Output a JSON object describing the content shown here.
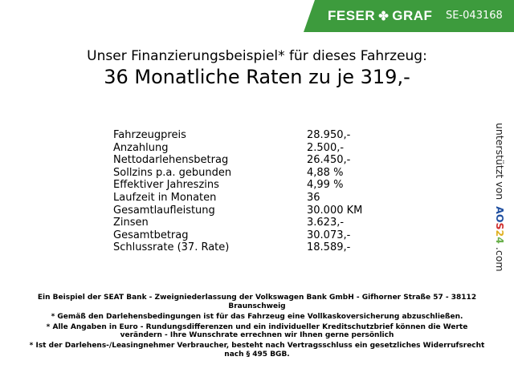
{
  "header": {
    "brand_left": "FESER",
    "brand_right": "GRAF",
    "dealer_code": "SE-043168",
    "brand_color": "#3d9b3d",
    "icon": "clover-icon"
  },
  "title": {
    "line1": "Unser Finanzierungsbeispiel* für dieses Fahrzeug:",
    "line2": "36 Monatliche Raten zu je 319,-"
  },
  "rows": [
    {
      "label": "Fahrzeugpreis",
      "value": "28.950,-"
    },
    {
      "label": "Anzahlung",
      "value": "2.500,-"
    },
    {
      "label": "Nettodarlehensbetrag",
      "value": "26.450,-"
    },
    {
      "label": "Sollzins p.a. gebunden",
      "value": "4,88 %"
    },
    {
      "label": "Effektiver Jahreszins",
      "value": "4,99 %"
    },
    {
      "label": "Laufzeit in Monaten",
      "value": "36"
    },
    {
      "label": "Gesamtlaufleistung",
      "value": "30.000 KM"
    },
    {
      "label": "Zinsen",
      "value": "3.623,-"
    },
    {
      "label": "Gesamtbetrag",
      "value": "30.073,-"
    },
    {
      "label": "Schlussrate (37. Rate)",
      "value": "18.589,-"
    }
  ],
  "side": {
    "text": "unterstützt von",
    "logo": "AOS24",
    "suffix": ".com"
  },
  "footer": [
    "Ein Beispiel der SEAT Bank - Zweigniederlassung der Volkswagen Bank GmbH - Gifhorner Straße 57 - 38112 Braunschweig",
    "* Gemäß den Darlehensbedingungen ist für das Fahrzeug eine Vollkaskoversicherung abzuschließen.",
    "* Alle Angaben in Euro - Rundungsdifferenzen und ein individueller Kreditschutzbrief können die Werte verändern - Ihre Wunschrate errechnen wir Ihnen gerne persönlich",
    "* Ist der Darlehens-/Leasingnehmer Verbraucher, besteht nach Vertragsschluss ein gesetzliches Widerrufsrecht nach § 495 BGB."
  ]
}
